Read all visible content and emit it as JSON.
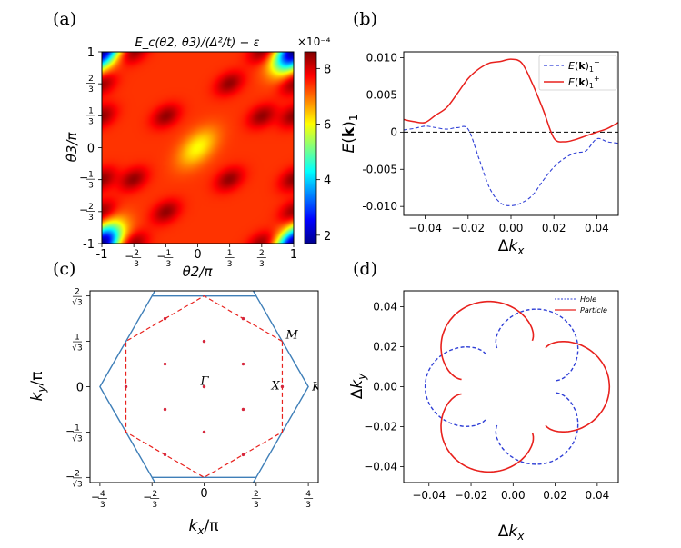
{
  "panels": {
    "a": {
      "letter": "(a)"
    },
    "b": {
      "letter": "(b)"
    },
    "c": {
      "letter": "(c)"
    },
    "d": {
      "letter": "(d)"
    }
  },
  "colors": {
    "red": "#e8211d",
    "blue": "#2f3fd6",
    "steel": "#3f7fb8",
    "dot": "#d6263c"
  },
  "chart_data": [
    {
      "panel": "a",
      "type": "heatmap",
      "title": "E_c(θ2, θ3)/(Δ²/t) − ε",
      "xlabel": "θ2/π",
      "ylabel": "θ3/π",
      "xlim": [
        -1,
        1
      ],
      "ylim": [
        -1,
        1
      ],
      "xticks": [
        {
          "v": -1,
          "t": "-1"
        },
        {
          "v": -0.6667,
          "t": "−2/3"
        },
        {
          "v": -0.3333,
          "t": "−1/3"
        },
        {
          "v": 0,
          "t": "0"
        },
        {
          "v": 0.3333,
          "t": "1/3"
        },
        {
          "v": 0.6667,
          "t": "2/3"
        },
        {
          "v": 1,
          "t": "1"
        }
      ],
      "yticks": [
        {
          "v": -1,
          "t": "-1"
        },
        {
          "v": -0.6667,
          "t": "−2/3"
        },
        {
          "v": -0.3333,
          "t": "−1/3"
        },
        {
          "v": 0,
          "t": "0"
        },
        {
          "v": 0.3333,
          "t": "1/3"
        },
        {
          "v": 0.6667,
          "t": "2/3"
        },
        {
          "v": 1,
          "t": "1"
        }
      ],
      "colorbar": {
        "range": [
          1.7,
          8.6
        ],
        "ticks": [
          2,
          4,
          6,
          8
        ],
        "exponent": "×10⁻⁴",
        "colormap": "jet"
      },
      "maxima": [
        [
          0.33,
          0.67
        ],
        [
          -0.33,
          -0.67
        ],
        [
          0.67,
          0.33
        ],
        [
          -0.67,
          -0.33
        ],
        [
          0.33,
          -0.33
        ],
        [
          -0.33,
          0.33
        ],
        [
          1,
          0.67
        ],
        [
          -1,
          -0.67
        ],
        [
          0.67,
          1
        ],
        [
          -0.67,
          -1
        ],
        [
          1,
          -0.33
        ],
        [
          -1,
          0.33
        ]
      ],
      "minima": [
        [
          0,
          0
        ],
        [
          1,
          1
        ],
        [
          -1,
          -1
        ],
        [
          1,
          -1
        ],
        [
          -1,
          1
        ]
      ]
    },
    {
      "panel": "b",
      "type": "line",
      "xlabel": "Δk_x",
      "ylabel": "E(k)_1",
      "xlim": [
        -0.05,
        0.05
      ],
      "ylim": [
        -0.0112,
        0.0108
      ],
      "xticks": [
        {
          "v": -0.04,
          "t": "−0.04"
        },
        {
          "v": -0.02,
          "t": "−0.02"
        },
        {
          "v": 0,
          "t": "0.00"
        },
        {
          "v": 0.02,
          "t": "0.02"
        },
        {
          "v": 0.04,
          "t": "0.04"
        }
      ],
      "yticks": [
        {
          "v": 0.01,
          "t": "0.010"
        },
        {
          "v": 0.005,
          "t": "0.005"
        },
        {
          "v": 0,
          "t": "0"
        },
        {
          "v": -0.005,
          "t": "-0.005"
        },
        {
          "v": -0.01,
          "t": "-0.010"
        }
      ],
      "hline": 0,
      "legend": "top-right",
      "x": [
        -0.05,
        -0.045,
        -0.04,
        -0.035,
        -0.03,
        -0.025,
        -0.02,
        -0.015,
        -0.01,
        -0.005,
        0,
        0.005,
        0.01,
        0.015,
        0.02,
        0.025,
        0.03,
        0.035,
        0.04,
        0.045,
        0.05
      ],
      "series": [
        {
          "name": "E(k)₁⁻",
          "style": "dashed",
          "color": "#2f3fd6",
          "values": [
            0.0003,
            0.0005,
            0.0008,
            0.0006,
            0.0004,
            0.0006,
            0.0004,
            -0.0035,
            -0.0075,
            -0.0095,
            -0.0099,
            -0.0095,
            -0.0085,
            -0.0065,
            -0.0047,
            -0.0035,
            -0.0028,
            -0.0025,
            -0.0009,
            -0.0013,
            -0.0015
          ]
        },
        {
          "name": "E(k)₁⁺",
          "style": "solid",
          "color": "#e8211d",
          "values": [
            0.0017,
            0.0014,
            0.0013,
            0.0023,
            0.0033,
            0.0052,
            0.0072,
            0.0085,
            0.0093,
            0.0095,
            0.0098,
            0.0093,
            0.0065,
            0.003,
            -0.0008,
            -0.0013,
            -0.001,
            -0.0005,
            0.0,
            0.0005,
            0.0013
          ]
        }
      ]
    },
    {
      "panel": "c",
      "type": "scatter",
      "xlabel": "k_x/π",
      "ylabel": "k_y/π",
      "xlim": [
        -1.46,
        1.46
      ],
      "ylim": [
        -1.22,
        1.22
      ],
      "xticks": [
        {
          "v": -1.3333,
          "t": "−4/3"
        },
        {
          "v": -0.6667,
          "t": "−2/3"
        },
        {
          "v": 0,
          "t": "0"
        },
        {
          "v": 0.6667,
          "t": "2/3"
        },
        {
          "v": 1.3333,
          "t": "4/3"
        }
      ],
      "yticks": [
        {
          "v": 1.1547,
          "t": "2/√3"
        },
        {
          "v": 0.5774,
          "t": "1/√3"
        },
        {
          "v": 0,
          "t": "0"
        },
        {
          "v": -0.5774,
          "t": "−1/√3"
        },
        {
          "v": -1.1547,
          "t": "−2/√3"
        }
      ],
      "point_labels": [
        {
          "t": "Γ",
          "x": 0,
          "y": 0
        },
        {
          "t": "M",
          "x": 1,
          "y": 0.5774
        },
        {
          "t": "X",
          "x": 1,
          "y": 0
        },
        {
          "t": "K",
          "x": 1.3333,
          "y": 0
        }
      ],
      "hexagon_outer_blue": [
        [
          1.3333,
          0
        ],
        [
          0.6667,
          1.1547
        ],
        [
          -0.6667,
          1.1547
        ],
        [
          -1.3333,
          0
        ],
        [
          -0.6667,
          -1.1547
        ],
        [
          0.6667,
          -1.1547
        ]
      ],
      "hexagon_inner_red": [
        [
          1,
          0.5774
        ],
        [
          0,
          1.1547
        ],
        [
          -1,
          0.5774
        ],
        [
          -1,
          -0.5774
        ],
        [
          0,
          -1.1547
        ],
        [
          1,
          -0.5774
        ]
      ],
      "points": [
        [
          0,
          0
        ],
        [
          0.5,
          0.2887
        ],
        [
          -0.5,
          0.2887
        ],
        [
          0.5,
          -0.2887
        ],
        [
          -0.5,
          -0.2887
        ],
        [
          0,
          0.5774
        ],
        [
          0,
          -0.5774
        ],
        [
          1,
          0
        ],
        [
          -1,
          0
        ],
        [
          0.5,
          0.866
        ],
        [
          -0.5,
          0.866
        ],
        [
          0.5,
          -0.866
        ],
        [
          -0.5,
          -0.866
        ]
      ]
    },
    {
      "panel": "d",
      "type": "line",
      "xlabel": "Δk_x",
      "ylabel": "Δk_y",
      "xlim": [
        -0.052,
        0.05
      ],
      "ylim": [
        -0.048,
        0.048
      ],
      "xticks": [
        {
          "v": -0.04,
          "t": "−0.04"
        },
        {
          "v": -0.02,
          "t": "−0.02"
        },
        {
          "v": 0,
          "t": "0.00"
        },
        {
          "v": 0.02,
          "t": "0.02"
        },
        {
          "v": 0.04,
          "t": "0.04"
        }
      ],
      "yticks": [
        {
          "v": 0.04,
          "t": "0.04"
        },
        {
          "v": 0.02,
          "t": "0.02"
        },
        {
          "v": 0,
          "t": "0.00"
        },
        {
          "v": -0.02,
          "t": "−0.02"
        },
        {
          "v": -0.04,
          "t": "−0.04"
        }
      ],
      "legend": "top-right",
      "series": [
        {
          "name": "Hole",
          "style": "dashed",
          "color": "#2f3fd6",
          "lobe_angles_deg": [
            60,
            180,
            300
          ],
          "r_center": 0.0208,
          "r_amp": 0.0168
        },
        {
          "name": "Particle",
          "style": "solid",
          "color": "#e8211d",
          "lobe_angles_deg": [
            0,
            120,
            240
          ],
          "r_center": 0.0248,
          "r_amp": 0.0168
        }
      ]
    }
  ]
}
